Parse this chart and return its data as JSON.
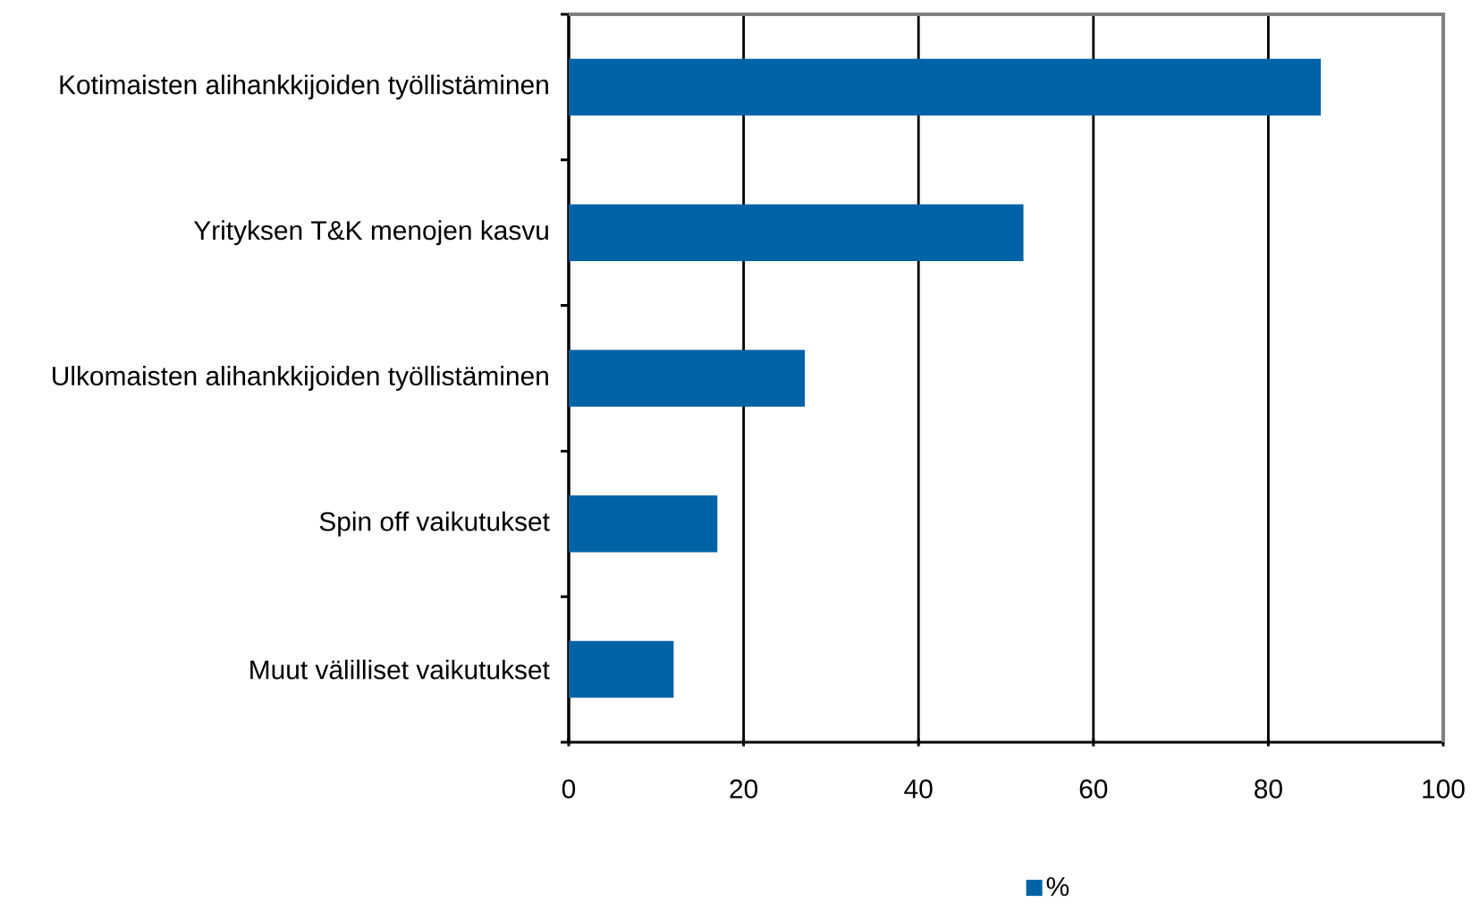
{
  "chart_data": {
    "type": "bar",
    "orientation": "horizontal",
    "categories": [
      "Kotimaisten alihankkijoiden työllistäminen",
      "Yrityksen T&K menojen kasvu",
      "Ulkomaisten alihankkijoiden työllistäminen",
      "Spin off vaikutukset",
      "Muut välilliset vaikutukset"
    ],
    "series": [
      {
        "name": "%",
        "color": "#0063a6",
        "values": [
          86,
          52,
          27,
          17,
          12
        ]
      }
    ],
    "xlim": [
      0,
      100
    ],
    "xticks": [
      0,
      20,
      40,
      60,
      80,
      100
    ],
    "grid": "x",
    "legend": "bottom"
  }
}
